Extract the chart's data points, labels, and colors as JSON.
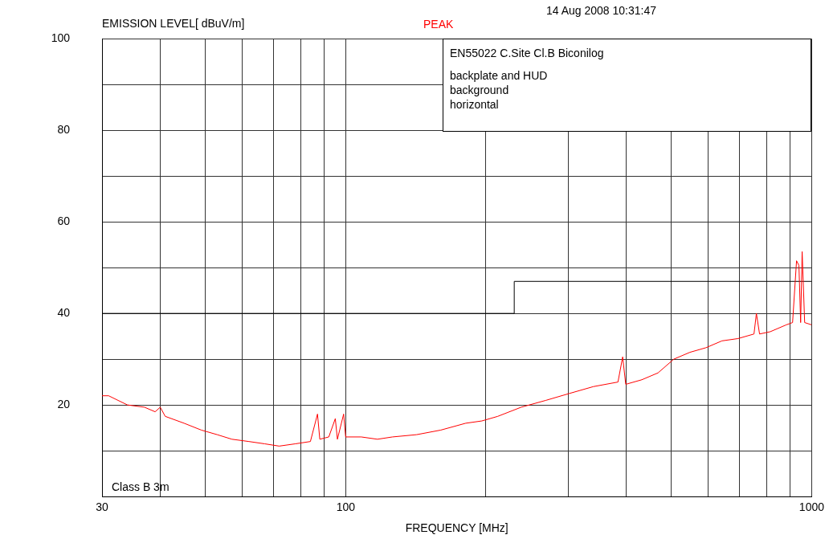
{
  "chart_data": {
    "type": "line",
    "subtitle": "14 Aug 2008  10:31:47",
    "ylabel": "EMISSION LEVEL[ dBuV/m]",
    "xlabel": "FREQUENCY [MHz]",
    "annotations": [
      "EN55022 C.Site Cl.B Biconilog",
      "backplate and HUD",
      "background",
      "horizontal"
    ],
    "log": "x",
    "grid": true,
    "legend": false,
    "marker": "none",
    "xlim": [
      30,
      1000
    ],
    "ylim": [
      0,
      100
    ],
    "xticks": [
      30,
      {
        "value": 40,
        "label": null
      },
      {
        "value": 50,
        "label": null
      },
      {
        "value": 60,
        "label": null
      },
      {
        "value": 70,
        "label": null
      },
      {
        "value": 80,
        "label": null
      },
      {
        "value": 90,
        "label": null
      },
      100,
      {
        "value": 200,
        "label": null
      },
      {
        "value": 300,
        "label": null
      },
      {
        "value": 400,
        "label": null
      },
      {
        "value": 500,
        "label": null
      },
      {
        "value": 600,
        "label": null
      },
      {
        "value": 700,
        "label": null
      },
      {
        "value": 800,
        "label": null
      },
      {
        "value": 900,
        "label": null
      },
      1000
    ],
    "yticks": [
      {
        "value": 0,
        "label": null
      },
      {
        "value": 10,
        "label": null
      },
      20,
      {
        "value": 30,
        "label": null
      },
      40,
      {
        "value": 50,
        "label": null
      },
      60,
      {
        "value": 70,
        "label": null
      },
      80,
      {
        "value": 90,
        "label": null
      },
      100
    ],
    "series": [
      {
        "name": "PEAK",
        "color": "#ff0000",
        "x": [
          30,
          31,
          34,
          37,
          39,
          40,
          41,
          45,
          49,
          53,
          57,
          62,
          67,
          72,
          78,
          84,
          87,
          88,
          92,
          95,
          96,
          99,
          100,
          108,
          117,
          126,
          142,
          160,
          181,
          196,
          212,
          238,
          269,
          302,
          340,
          384,
          393,
          399,
          432,
          468,
          506,
          548,
          593,
          642,
          695,
          752,
          761,
          773,
          815,
          882,
          910,
          928,
          939,
          947,
          954,
          966,
          1000
        ],
        "values": [
          22,
          22,
          20,
          19.5,
          18.5,
          19.5,
          17.5,
          16,
          14.5,
          13.5,
          12.5,
          12,
          11.5,
          11,
          11.5,
          12,
          18,
          12.5,
          13,
          17,
          12.5,
          18,
          13,
          13,
          12.5,
          13,
          13.5,
          14.5,
          16,
          16.5,
          17.5,
          19.5,
          21,
          22.5,
          24,
          25,
          30.5,
          24.5,
          25.5,
          27,
          30,
          31.5,
          32.5,
          34,
          34.5,
          35.5,
          40,
          35.5,
          36,
          37.5,
          38,
          51.5,
          50.5,
          38,
          53.5,
          38,
          37.5
        ]
      },
      {
        "name": "Class B 3m",
        "color": "#000000",
        "x": [
          30,
          230,
          230,
          1000
        ],
        "values": [
          40,
          40,
          47,
          47
        ]
      }
    ]
  }
}
